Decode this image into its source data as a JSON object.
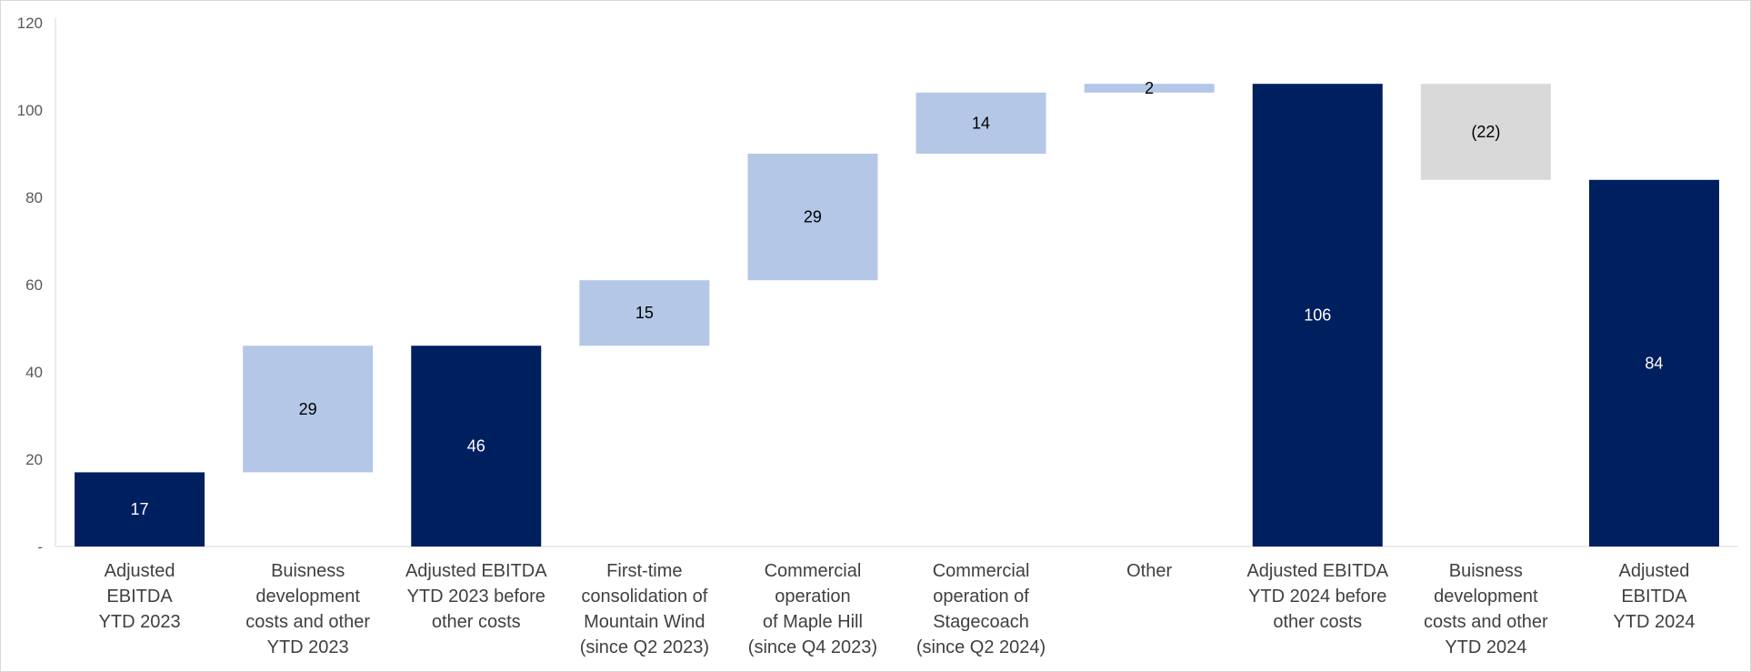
{
  "chart_data": {
    "type": "bar",
    "subtype": "waterfall",
    "title": "",
    "xlabel": "",
    "ylabel": "",
    "ylim": [
      0,
      120
    ],
    "yticks": [
      "-",
      "20",
      "40",
      "60",
      "80",
      "100",
      "120"
    ],
    "grid": false,
    "categories": [
      "Adjusted\nEBITDA\nYTD 2023",
      "Buisness\ndevelopment\ncosts and other\nYTD 2023",
      "Adjusted EBITDA\nYTD 2023 before\nother costs",
      "First-time\nconsolidation of\nMountain Wind\n(since Q2 2023)",
      "Commercial\noperation\nof Maple Hill\n(since Q4 2023)",
      "Commercial\noperation of\nStagecoach\n(since Q2 2024)",
      "Other",
      "Adjusted EBITDA\nYTD 2024 before\nother costs",
      "Buisness\ndevelopment\ncosts and other\nYTD 2024",
      "Adjusted\nEBITDA\nYTD 2024"
    ],
    "bars": [
      {
        "kind": "total",
        "start": 0,
        "end": 17,
        "label": "17"
      },
      {
        "kind": "increase",
        "start": 17,
        "end": 46,
        "label": "29"
      },
      {
        "kind": "total",
        "start": 0,
        "end": 46,
        "label": "46"
      },
      {
        "kind": "increase",
        "start": 46,
        "end": 61,
        "label": "15"
      },
      {
        "kind": "increase",
        "start": 61,
        "end": 90,
        "label": "29"
      },
      {
        "kind": "increase",
        "start": 90,
        "end": 104,
        "label": "14"
      },
      {
        "kind": "increase",
        "start": 104,
        "end": 106,
        "label": "2"
      },
      {
        "kind": "total",
        "start": 0,
        "end": 106,
        "label": "106"
      },
      {
        "kind": "decrease",
        "start": 84,
        "end": 106,
        "label": "(22)"
      },
      {
        "kind": "total",
        "start": 0,
        "end": 84,
        "label": "84"
      }
    ],
    "colors": {
      "total": "#001f5f",
      "increase": "#b4c7e7",
      "decrease": "#d9d9d9",
      "total_label": "#ffffff",
      "other_label": "#000000"
    }
  }
}
